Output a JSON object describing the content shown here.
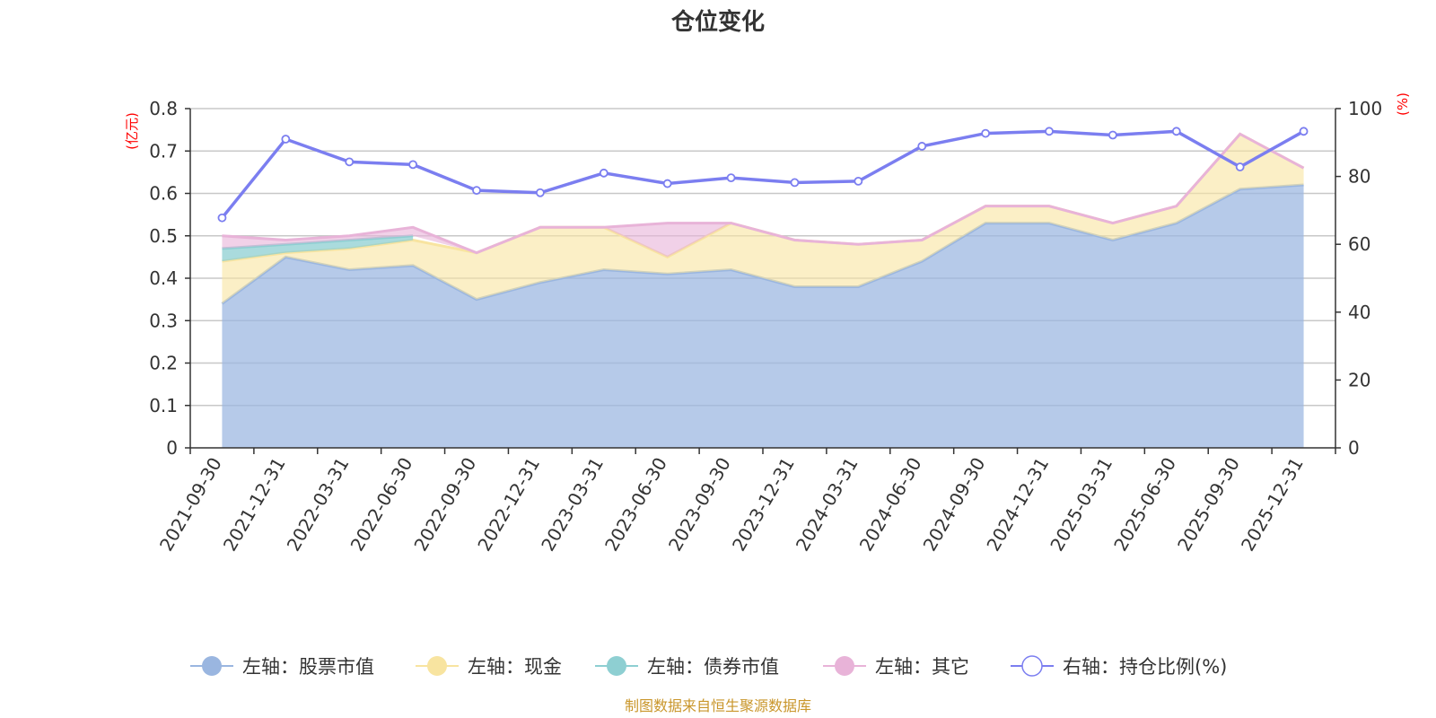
{
  "chart_data": {
    "type": "area",
    "title": "仓位变化",
    "categories": [
      "2021-09-30",
      "2021-12-31",
      "2022-03-31",
      "2022-06-30",
      "2022-09-30",
      "2022-12-31",
      "2023-03-31",
      "2023-06-30",
      "2023-09-30",
      "2023-12-31",
      "2024-03-31",
      "2024-06-30",
      "2024-09-30",
      "2024-12-31",
      "2025-03-31",
      "2025-06-30",
      "2025-09-30",
      "2025-12-31"
    ],
    "left_axis": {
      "unit": "(亿元)",
      "ylim": [
        0,
        0.8
      ],
      "ticks": [
        "0",
        "0.1",
        "0.2",
        "0.3",
        "0.4",
        "0.5",
        "0.6",
        "0.7",
        "0.8"
      ]
    },
    "right_axis": {
      "unit": "(%)",
      "ylim": [
        0,
        100
      ],
      "ticks": [
        "0",
        "20",
        "40",
        "60",
        "80",
        "100"
      ]
    },
    "grid": true,
    "stacked": true,
    "legend_position": "bottom",
    "series": [
      {
        "name": "左轴：股票市值",
        "axis": "left",
        "kind": "area",
        "color": "#9ab6e0",
        "values": [
          0.34,
          0.45,
          0.42,
          0.43,
          0.35,
          0.39,
          0.42,
          0.41,
          0.42,
          0.38,
          0.38,
          0.44,
          0.53,
          0.53,
          0.49,
          0.53,
          0.61,
          0.62
        ]
      },
      {
        "name": "左轴：现金",
        "axis": "left",
        "kind": "area",
        "color": "#f8e4a0",
        "values": [
          0.1,
          0.01,
          0.05,
          0.06,
          0.11,
          0.13,
          0.1,
          0.04,
          0.11,
          0.11,
          0.1,
          0.05,
          0.04,
          0.04,
          0.04,
          0.04,
          0.13,
          0.04
        ]
      },
      {
        "name": "左轴：债券市值",
        "axis": "left",
        "kind": "area",
        "color": "#8ecfd2",
        "values": [
          0.03,
          0.02,
          0.02,
          0.01,
          null,
          null,
          null,
          null,
          null,
          null,
          null,
          null,
          null,
          null,
          null,
          null,
          null,
          null
        ]
      },
      {
        "name": "左轴：其它",
        "axis": "left",
        "kind": "area",
        "color": "#e8b3d8",
        "values": [
          0.03,
          0.01,
          0.01,
          0.02,
          0.0,
          0.0,
          0.0,
          0.08,
          0.0,
          0.0,
          0.0,
          0.0,
          0.0,
          0.0,
          0.0,
          0.0,
          0.0,
          0.0
        ]
      },
      {
        "name": "右轴：持仓比例(%)",
        "axis": "right",
        "kind": "line",
        "color": "#7b7ef0",
        "values": [
          67.8,
          91.0,
          84.3,
          83.5,
          75.9,
          75.2,
          81.0,
          77.9,
          79.6,
          78.2,
          78.6,
          88.9,
          92.7,
          93.3,
          92.2,
          93.3,
          82.8,
          93.3
        ]
      }
    ],
    "footer": "制图数据来自恒生聚源数据库"
  }
}
